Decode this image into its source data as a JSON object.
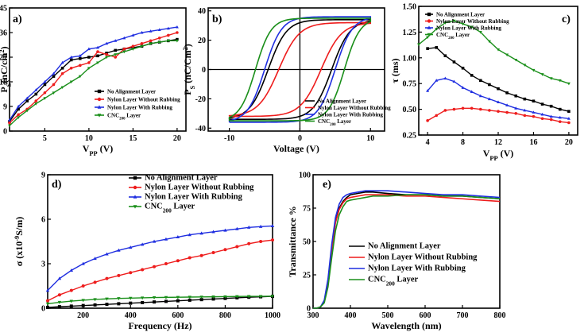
{
  "colors": {
    "black": "#000000",
    "red": "#ee1c1c",
    "blue": "#1f2ee0",
    "green": "#1a8f1a"
  },
  "series_names": [
    "No Alignment Layer",
    "Nylon Layer Without Rubbing",
    "Nylon Layer With Rubbing",
    "CNC200 Layer"
  ],
  "chart_data": [
    {
      "id": "a",
      "type": "line",
      "panel_label": "a)",
      "xlabel": "VPP (V)",
      "ylabel": "PS(nC/cm2)",
      "xlim": [
        1,
        21
      ],
      "ylim": [
        0,
        45
      ],
      "xticks": [
        5,
        10,
        15,
        20
      ],
      "yticks": [
        0,
        9,
        18,
        27,
        36,
        45
      ],
      "legend_pos": "bottom-right",
      "series": [
        {
          "name": "No Alignment Layer",
          "marker": "square",
          "x": [
            1,
            2,
            3,
            4,
            5,
            6,
            7,
            8,
            9,
            10,
            11,
            12,
            13,
            14,
            15,
            16,
            17,
            18,
            19,
            20
          ],
          "y": [
            3.5,
            8,
            11,
            13.5,
            17,
            20,
            23,
            26,
            26.5,
            27,
            27.5,
            28.5,
            29.5,
            30,
            30.5,
            31,
            32,
            32.5,
            33,
            33.5
          ]
        },
        {
          "name": "Nylon Layer Without Rubbing",
          "marker": "circle",
          "x": [
            1,
            2,
            3,
            4,
            5,
            6,
            7,
            8,
            9,
            10,
            11,
            12,
            13,
            14,
            15,
            16,
            17,
            18,
            19,
            20
          ],
          "y": [
            3,
            6,
            8,
            11,
            14,
            17,
            21,
            23,
            24,
            25,
            29,
            28,
            27,
            30,
            31,
            32,
            33,
            34,
            35,
            36
          ]
        },
        {
          "name": "Nylon Layer With Rubbing",
          "marker": "triangle-up",
          "x": [
            1,
            2,
            3,
            4,
            5,
            6,
            7,
            8,
            9,
            10,
            11,
            12,
            13,
            14,
            15,
            16,
            17,
            18,
            19,
            20
          ],
          "y": [
            4,
            9,
            12,
            15,
            18,
            21,
            25,
            27,
            27.5,
            30,
            30.5,
            32,
            33,
            34,
            35,
            36,
            36.5,
            37,
            37.5,
            38
          ]
        },
        {
          "name": "CNC200 Layer",
          "marker": "triangle-down",
          "x": [
            1,
            2,
            3,
            4,
            5,
            6,
            7,
            8,
            9,
            10,
            11,
            12,
            13,
            14,
            15,
            16,
            17,
            18,
            19,
            20
          ],
          "y": [
            2,
            5,
            7.5,
            10,
            12,
            14,
            16,
            18,
            20,
            23,
            25,
            27,
            28,
            29,
            30,
            31,
            32,
            32.5,
            33,
            33
          ]
        }
      ]
    },
    {
      "id": "b",
      "type": "line",
      "panel_label": "b)",
      "xlabel": "Voltage (V)",
      "ylabel": "PS (nC/Cm2)",
      "xlim": [
        -13,
        12
      ],
      "ylim": [
        -42,
        42
      ],
      "xticks": [
        -10,
        0,
        10
      ],
      "yticks": [
        -40,
        -20,
        0,
        20,
        40
      ],
      "legend_pos": "bottom-right",
      "series": [
        {
          "name": "No Alignment Layer",
          "Ps": 34,
          "Vc": 4.5,
          "w": 2.6
        },
        {
          "name": "Nylon Layer Without Rubbing",
          "Ps": 32,
          "Vc": 3.0,
          "w": 2.9
        },
        {
          "name": "Nylon Layer With Rubbing",
          "Ps": 36,
          "Vc": 5.0,
          "w": 2.4
        },
        {
          "name": "CNC200 Layer",
          "Ps": 35,
          "Vc": 6.3,
          "w": 2.2
        }
      ]
    },
    {
      "id": "c",
      "type": "line",
      "panel_label": "c)",
      "xlabel": "VPP (V)",
      "ylabel": "τ (ms)",
      "xlim": [
        3,
        21
      ],
      "ylim": [
        0.25,
        1.5
      ],
      "xticks": [
        4,
        8,
        12,
        16,
        20
      ],
      "yticks": [
        0.25,
        0.5,
        0.75,
        1.0,
        1.25,
        1.5
      ],
      "ytick_labels": [
        "0.25",
        "0.50",
        "0.75",
        "1.00",
        "1.25",
        "1.50"
      ],
      "legend_pos": "top-left",
      "series": [
        {
          "name": "No Alignment Layer",
          "marker": "square",
          "x": [
            4,
            5,
            6,
            7,
            8,
            9,
            10,
            11,
            12,
            13,
            14,
            15,
            16,
            17,
            18,
            19,
            20
          ],
          "y": [
            1.09,
            1.1,
            1.02,
            0.96,
            0.9,
            0.83,
            0.78,
            0.74,
            0.7,
            0.66,
            0.63,
            0.6,
            0.58,
            0.55,
            0.53,
            0.5,
            0.48
          ]
        },
        {
          "name": "Nylon Layer Without Rubbing",
          "marker": "circle",
          "x": [
            4,
            5,
            6,
            7,
            8,
            9,
            10,
            11,
            12,
            13,
            14,
            15,
            16,
            17,
            18,
            19,
            20
          ],
          "y": [
            0.39,
            0.44,
            0.49,
            0.5,
            0.51,
            0.51,
            0.5,
            0.49,
            0.48,
            0.47,
            0.46,
            0.44,
            0.43,
            0.41,
            0.4,
            0.38,
            0.37
          ]
        },
        {
          "name": "Nylon Layer With Rubbing",
          "marker": "triangle-up",
          "x": [
            4,
            5,
            6,
            7,
            8,
            9,
            10,
            11,
            12,
            13,
            14,
            15,
            16,
            17,
            18,
            19,
            20
          ],
          "y": [
            0.68,
            0.78,
            0.8,
            0.77,
            0.71,
            0.67,
            0.63,
            0.6,
            0.57,
            0.54,
            0.51,
            0.49,
            0.47,
            0.45,
            0.43,
            0.42,
            0.41
          ]
        },
        {
          "name": "CNC200 Layer",
          "marker": "triangle-down",
          "x": [
            3,
            4,
            5,
            6,
            7,
            8,
            9,
            10,
            11,
            12,
            13,
            14,
            15,
            16,
            17,
            18,
            19,
            20
          ],
          "y": [
            1.13,
            1.2,
            1.28,
            1.34,
            1.36,
            1.33,
            1.3,
            1.25,
            1.16,
            1.08,
            1.03,
            0.98,
            0.93,
            0.88,
            0.84,
            0.8,
            0.78,
            0.75
          ]
        }
      ]
    },
    {
      "id": "d",
      "type": "line",
      "panel_label": "d)",
      "xlabel": "Frequency (Hz)",
      "ylabel": "σ (x10-9S/m)",
      "xlim": [
        50,
        1000
      ],
      "ylim": [
        0,
        9
      ],
      "xticks": [
        200,
        400,
        600,
        800,
        1000
      ],
      "yticks": [
        0,
        3,
        6,
        9
      ],
      "legend_pos": "top-left",
      "series": [
        {
          "name": "No Alignment Layer",
          "marker": "square",
          "x": [
            50,
            100,
            150,
            200,
            250,
            300,
            350,
            400,
            450,
            500,
            550,
            600,
            650,
            700,
            750,
            800,
            850,
            900,
            950,
            1000
          ],
          "y": [
            0.05,
            0.1,
            0.14,
            0.18,
            0.22,
            0.26,
            0.3,
            0.34,
            0.38,
            0.42,
            0.46,
            0.5,
            0.54,
            0.58,
            0.62,
            0.66,
            0.7,
            0.74,
            0.77,
            0.8
          ]
        },
        {
          "name": "Nylon Layer Without Rubbing",
          "marker": "circle",
          "x": [
            50,
            100,
            150,
            200,
            250,
            300,
            350,
            400,
            450,
            500,
            550,
            600,
            650,
            700,
            750,
            800,
            850,
            900,
            950,
            1000
          ],
          "y": [
            0.5,
            0.9,
            1.2,
            1.5,
            1.75,
            2.0,
            2.2,
            2.4,
            2.6,
            2.8,
            3.0,
            3.2,
            3.4,
            3.55,
            3.75,
            3.95,
            4.15,
            4.35,
            4.5,
            4.6
          ]
        },
        {
          "name": "Nylon Layer With Rubbing",
          "marker": "triangle-up",
          "x": [
            50,
            100,
            150,
            200,
            250,
            300,
            350,
            400,
            450,
            500,
            550,
            600,
            650,
            700,
            750,
            800,
            850,
            900,
            950,
            1000
          ],
          "y": [
            1.2,
            2.0,
            2.55,
            3.0,
            3.35,
            3.65,
            3.9,
            4.1,
            4.3,
            4.5,
            4.65,
            4.8,
            4.95,
            5.05,
            5.15,
            5.25,
            5.35,
            5.45,
            5.5,
            5.55
          ]
        },
        {
          "name": "CNC200 Layer",
          "marker": "triangle-down",
          "x": [
            50,
            100,
            150,
            200,
            250,
            300,
            350,
            400,
            450,
            500,
            550,
            600,
            650,
            700,
            750,
            800,
            850,
            900,
            950,
            1000
          ],
          "y": [
            0.3,
            0.4,
            0.48,
            0.54,
            0.59,
            0.63,
            0.66,
            0.68,
            0.7,
            0.72,
            0.73,
            0.74,
            0.75,
            0.76,
            0.77,
            0.78,
            0.79,
            0.8,
            0.8,
            0.81
          ]
        }
      ]
    },
    {
      "id": "e",
      "type": "line",
      "panel_label": "e)",
      "xlabel": "Wavelength (nm)",
      "ylabel": "Transmittance %",
      "xlim": [
        300,
        800
      ],
      "ylim": [
        0,
        100
      ],
      "xticks": [
        300,
        400,
        500,
        600,
        700,
        800
      ],
      "yticks": [
        0,
        25,
        50,
        75,
        100
      ],
      "legend_pos": "bottom-right",
      "series": [
        {
          "name": "No Alignment Layer",
          "x": [
            300,
            310,
            320,
            330,
            340,
            350,
            360,
            370,
            380,
            390,
            400,
            420,
            440,
            460,
            500,
            550,
            600,
            650,
            700,
            750,
            800
          ],
          "y": [
            0,
            0,
            1,
            5,
            20,
            45,
            65,
            75,
            80,
            83,
            85,
            86,
            87,
            87,
            86,
            85,
            85,
            84,
            84,
            83,
            82
          ]
        },
        {
          "name": "Nylon Layer Without Rubbing",
          "x": [
            300,
            310,
            320,
            330,
            340,
            350,
            360,
            370,
            380,
            390,
            400,
            420,
            440,
            460,
            500,
            550,
            600,
            650,
            700,
            750,
            800
          ],
          "y": [
            0,
            0,
            1,
            5,
            19,
            44,
            64,
            74,
            79,
            82,
            83,
            84,
            85,
            85,
            85,
            84,
            84,
            83,
            82,
            81,
            80
          ]
        },
        {
          "name": "Nylon Layer With Rubbing",
          "x": [
            300,
            310,
            320,
            330,
            340,
            350,
            360,
            370,
            380,
            390,
            400,
            420,
            440,
            460,
            500,
            550,
            600,
            650,
            700,
            750,
            800
          ],
          "y": [
            0,
            0,
            1,
            6,
            22,
            48,
            68,
            78,
            83,
            85,
            86,
            87,
            88,
            88,
            88,
            87,
            86,
            85,
            85,
            84,
            83
          ]
        },
        {
          "name": "CNC200 Layer",
          "x": [
            300,
            310,
            320,
            330,
            340,
            350,
            360,
            370,
            380,
            390,
            400,
            420,
            440,
            460,
            500,
            550,
            600,
            650,
            700,
            750,
            800
          ],
          "y": [
            0,
            0,
            1,
            4,
            16,
            38,
            58,
            70,
            76,
            80,
            81,
            82,
            83,
            84,
            84,
            85,
            85,
            84,
            84,
            83,
            82
          ]
        }
      ]
    }
  ]
}
